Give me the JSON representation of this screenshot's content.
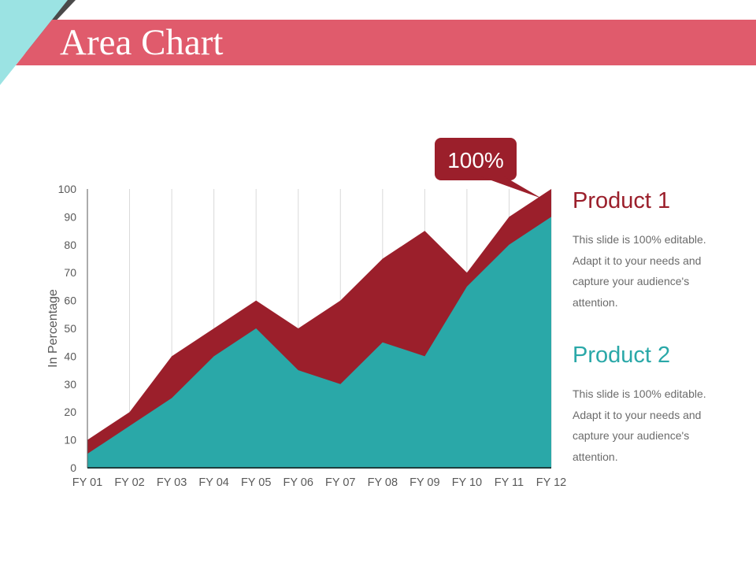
{
  "slide": {
    "title": "Area Chart",
    "title_bar_color": "#e05b6c",
    "corner_accent_color": "#9be3e3",
    "corner_shadow_color": "#4a4a4a"
  },
  "callout": {
    "label": "100%",
    "color": "#9b1f2b"
  },
  "legend": [
    {
      "title": "Product 1",
      "color": "#9b1f2b",
      "description": "This slide is 100% editable. Adapt it to your needs and capture your audience's attention."
    },
    {
      "title": "Product 2",
      "color": "#2aa8a8",
      "description": "This slide is 100% editable. Adapt it to your needs and capture your audience's attention."
    }
  ],
  "chart_data": {
    "type": "area",
    "stacked": false,
    "title": "",
    "xlabel": "",
    "ylabel": "In Percentage",
    "ylim": [
      0,
      100
    ],
    "yticks": [
      0,
      10,
      20,
      30,
      40,
      50,
      60,
      70,
      80,
      90,
      100
    ],
    "categories": [
      "FY 01",
      "FY 02",
      "FY 03",
      "FY 04",
      "FY 05",
      "FY 06",
      "FY 07",
      "FY 08",
      "FY 09",
      "FY 10",
      "FY 11",
      "FY 12"
    ],
    "series": [
      {
        "name": "Product 1",
        "color": "#9b1f2b",
        "values": [
          10,
          20,
          40,
          50,
          60,
          50,
          60,
          75,
          85,
          70,
          90,
          100
        ]
      },
      {
        "name": "Product 2",
        "color": "#2aa8a8",
        "values": [
          5,
          15,
          25,
          40,
          50,
          35,
          30,
          45,
          40,
          65,
          80,
          90
        ]
      }
    ],
    "grid": {
      "vertical": true,
      "horizontal": false
    },
    "legend_position": "right",
    "annotations": [
      {
        "text": "100%",
        "target": "Product 1 @ FY 12"
      }
    ]
  }
}
